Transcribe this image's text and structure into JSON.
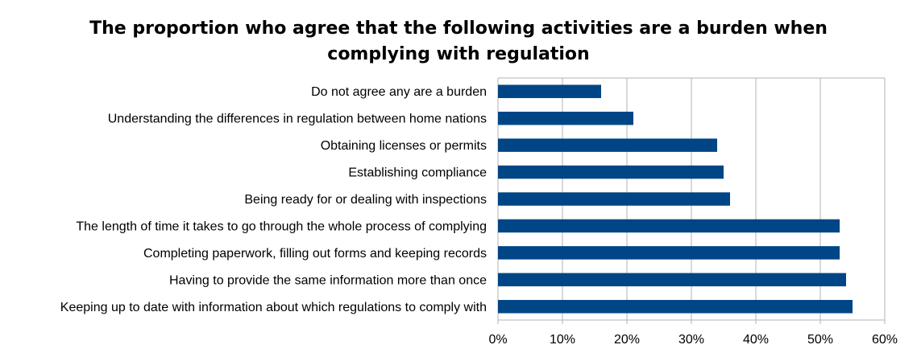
{
  "chart_data": {
    "type": "bar",
    "orientation": "horizontal",
    "title_lines": [
      "The proportion who agree that the following activities are a burden when",
      "complying with regulation"
    ],
    "categories": [
      "Do not agree any are a burden",
      "Understanding the differences in regulation between home nations",
      "Obtaining licenses or permits",
      "Establishing compliance",
      "Being ready for or dealing with inspections",
      "The length of time it takes to go through the whole process of complying",
      "Completing paperwork, filling out forms and keeping records",
      "Having to provide the same information more than once",
      "Keeping up to date with information about which regulations to comply with"
    ],
    "values": [
      16,
      21,
      34,
      35,
      36,
      53,
      53,
      54,
      55
    ],
    "xlim": [
      0,
      60
    ],
    "xticks": [
      0,
      10,
      20,
      30,
      40,
      50,
      60
    ],
    "tick_suffix": "%",
    "grid": true,
    "legend": "none",
    "bar_color": "#004586",
    "grid_color": "#b3b3b3"
  }
}
